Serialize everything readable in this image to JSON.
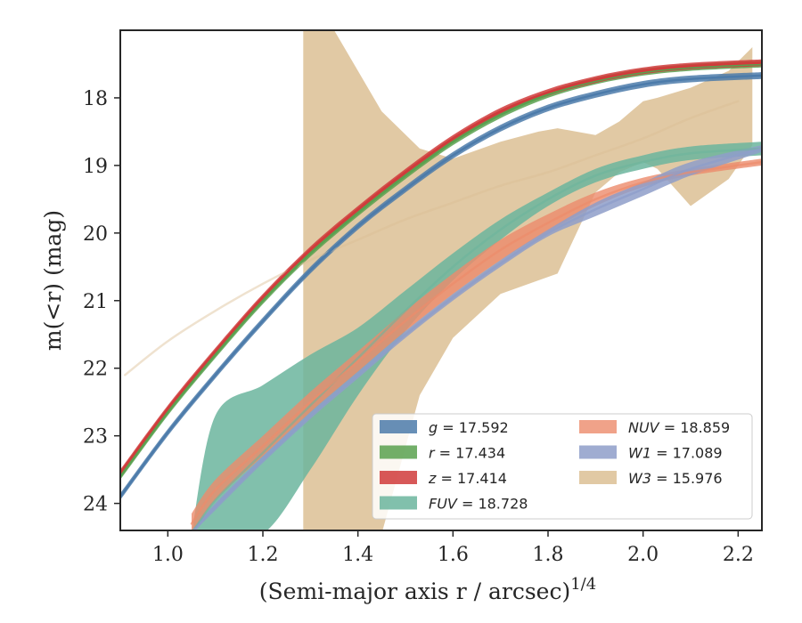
{
  "chart_data": {
    "type": "line",
    "xlabel": "(Semi-major axis r / arcsec)",
    "xlabel_exponent": "1/4",
    "ylabel": "m(<r) (mag)",
    "xlim": [
      0.9,
      2.25
    ],
    "ylim": [
      24.4,
      17.0
    ],
    "y_inverted": true,
    "grid": false,
    "legend_position": "lower-right",
    "x_ticks": [
      "1.0",
      "1.2",
      "1.4",
      "1.6",
      "1.8",
      "2.0",
      "2.2"
    ],
    "x_tick_values": [
      1.0,
      1.2,
      1.4,
      1.6,
      1.8,
      2.0,
      2.2
    ],
    "y_ticks": [
      "18",
      "19",
      "20",
      "21",
      "22",
      "23",
      "24"
    ],
    "y_tick_values": [
      18,
      19,
      20,
      21,
      22,
      23,
      24
    ],
    "legend_columns": [
      [
        "g",
        "r",
        "z",
        "FUV"
      ],
      [
        "NUV",
        "W1",
        "W3"
      ]
    ],
    "series": [
      {
        "id": "g",
        "name": "g",
        "legend_value": "17.592",
        "color": "#4c7baa",
        "x": [
          0.9,
          1.0,
          1.1,
          1.2,
          1.3,
          1.4,
          1.5,
          1.6,
          1.7,
          1.8,
          1.9,
          2.0,
          2.1,
          2.25
        ],
        "y": [
          23.9,
          22.95,
          22.1,
          21.3,
          20.55,
          19.9,
          19.35,
          18.85,
          18.45,
          18.15,
          17.95,
          17.8,
          17.72,
          17.67
        ],
        "band_lo": [
          23.85,
          22.9,
          22.05,
          21.25,
          20.5,
          19.85,
          19.3,
          18.8,
          18.4,
          18.1,
          17.9,
          17.75,
          17.67,
          17.62
        ],
        "band_hi": [
          23.95,
          23.0,
          22.15,
          21.35,
          20.6,
          19.95,
          19.4,
          18.9,
          18.5,
          18.2,
          18.0,
          17.85,
          17.77,
          17.72
        ],
        "line_width": 2.5,
        "line_alpha": 1.0,
        "band_alpha": 0.85
      },
      {
        "id": "r",
        "name": "r",
        "legend_value": "17.434",
        "color": "#59a14f",
        "x": [
          0.9,
          1.0,
          1.1,
          1.2,
          1.3,
          1.4,
          1.5,
          1.6,
          1.7,
          1.8,
          1.9,
          2.0,
          2.1,
          2.25
        ],
        "y": [
          23.6,
          22.65,
          21.8,
          21.0,
          20.3,
          19.7,
          19.15,
          18.65,
          18.25,
          17.95,
          17.75,
          17.62,
          17.55,
          17.5
        ],
        "band_lo": [
          23.55,
          22.6,
          21.75,
          20.95,
          20.25,
          19.65,
          19.1,
          18.6,
          18.2,
          17.9,
          17.7,
          17.57,
          17.5,
          17.45
        ],
        "band_hi": [
          23.65,
          22.7,
          21.85,
          21.05,
          20.35,
          19.75,
          19.2,
          18.7,
          18.3,
          18.0,
          17.8,
          17.67,
          17.6,
          17.55
        ],
        "line_width": 2.5,
        "line_alpha": 1.0,
        "band_alpha": 0.85
      },
      {
        "id": "z",
        "name": "z",
        "legend_value": "17.414",
        "color": "#d03b3b",
        "x": [
          0.9,
          1.0,
          1.1,
          1.2,
          1.3,
          1.4,
          1.5,
          1.6,
          1.7,
          1.8,
          1.9,
          2.0,
          2.1,
          2.25
        ],
        "y": [
          23.55,
          22.6,
          21.75,
          20.95,
          20.25,
          19.65,
          19.1,
          18.6,
          18.2,
          17.92,
          17.73,
          17.6,
          17.53,
          17.48
        ],
        "band_lo": [
          23.5,
          22.55,
          21.7,
          20.9,
          20.2,
          19.6,
          19.05,
          18.55,
          18.15,
          17.87,
          17.68,
          17.55,
          17.48,
          17.43
        ],
        "band_hi": [
          23.6,
          22.65,
          21.8,
          21.0,
          20.3,
          19.7,
          19.15,
          18.65,
          18.25,
          17.97,
          17.78,
          17.65,
          17.58,
          17.53
        ],
        "line_width": 2.5,
        "line_alpha": 1.0,
        "band_alpha": 0.85
      },
      {
        "id": "FUV",
        "name": "FUV",
        "legend_value": "18.728",
        "color": "#6bb59d",
        "x": [
          1.05,
          1.1,
          1.2,
          1.3,
          1.4,
          1.5,
          1.6,
          1.7,
          1.8,
          1.9,
          2.0,
          2.1,
          2.25
        ],
        "y": [
          24.45,
          23.95,
          23.25,
          22.55,
          21.85,
          21.15,
          20.5,
          19.95,
          19.5,
          19.15,
          18.95,
          18.82,
          18.75
        ],
        "band_lo": [
          24.45,
          22.7,
          22.25,
          21.8,
          21.4,
          20.85,
          20.3,
          19.8,
          19.4,
          19.05,
          18.85,
          18.72,
          18.65
        ],
        "band_hi": [
          24.45,
          24.45,
          24.45,
          23.5,
          22.4,
          21.45,
          20.7,
          20.1,
          19.6,
          19.25,
          19.05,
          18.92,
          18.85
        ],
        "line_width": 2.5,
        "line_alpha": 0.55,
        "band_alpha": 0.85
      },
      {
        "id": "NUV",
        "name": "NUV",
        "legend_value": "18.859",
        "color": "#ec8b6b",
        "x": [
          1.05,
          1.1,
          1.2,
          1.3,
          1.4,
          1.5,
          1.6,
          1.7,
          1.8,
          1.9,
          2.0,
          2.1,
          2.25
        ],
        "y": [
          24.3,
          23.8,
          23.15,
          22.5,
          21.9,
          21.3,
          20.75,
          20.25,
          19.85,
          19.5,
          19.25,
          19.1,
          18.95
        ],
        "band_lo": [
          24.15,
          23.65,
          23.0,
          22.35,
          21.75,
          21.15,
          20.6,
          20.1,
          19.72,
          19.4,
          19.18,
          19.05,
          18.9
        ],
        "band_hi": [
          24.45,
          23.95,
          23.3,
          22.65,
          22.05,
          21.45,
          20.9,
          20.4,
          19.98,
          19.6,
          19.32,
          19.15,
          19.0
        ],
        "line_width": 2.5,
        "line_alpha": 0.7,
        "band_alpha": 0.8
      },
      {
        "id": "W1",
        "name": "W1",
        "legend_value": "17.089",
        "color": "#8e9dc9",
        "x": [
          1.05,
          1.1,
          1.2,
          1.3,
          1.4,
          1.5,
          1.6,
          1.7,
          1.8,
          1.9,
          2.0,
          2.1,
          2.25
        ],
        "y": [
          24.45,
          24.05,
          23.35,
          22.7,
          22.1,
          21.5,
          20.95,
          20.45,
          20.0,
          19.65,
          19.35,
          19.05,
          18.75
        ],
        "band_lo": [
          24.4,
          24.0,
          23.3,
          22.65,
          22.05,
          21.45,
          20.9,
          20.4,
          19.95,
          19.55,
          19.25,
          18.95,
          18.7
        ],
        "band_hi": [
          24.45,
          24.1,
          23.4,
          22.75,
          22.15,
          21.55,
          21.0,
          20.5,
          20.05,
          19.75,
          19.45,
          19.15,
          18.8
        ],
        "line_width": 2.5,
        "line_alpha": 0.75,
        "band_alpha": 0.85
      },
      {
        "id": "W3",
        "name": "W3",
        "legend_value": "15.976",
        "color": "#dcbf94",
        "x": [
          0.91,
          1.0,
          1.1,
          1.2,
          1.3,
          1.4,
          1.5,
          1.6,
          1.7,
          1.8,
          1.9,
          2.0,
          2.1,
          2.2
        ],
        "y": [
          22.1,
          21.6,
          21.15,
          20.75,
          20.4,
          20.1,
          19.8,
          19.55,
          19.3,
          19.1,
          18.85,
          18.6,
          18.3,
          18.05
        ],
        "band_x": [
          1.285,
          1.3,
          1.35,
          1.4,
          1.45,
          1.53,
          1.6,
          1.7,
          1.78,
          1.82,
          1.9,
          1.95,
          2.0,
          2.03,
          2.1,
          2.18,
          2.23
        ],
        "band_lo": [
          17.0,
          17.0,
          17.0,
          17.6,
          18.2,
          18.75,
          18.9,
          18.65,
          18.5,
          18.45,
          18.55,
          18.35,
          18.05,
          18.0,
          17.85,
          17.6,
          17.25
        ],
        "band_hi": [
          24.45,
          24.45,
          24.45,
          24.45,
          24.45,
          22.4,
          21.55,
          20.9,
          20.7,
          20.6,
          19.4,
          19.1,
          18.95,
          19.05,
          19.6,
          19.2,
          18.7
        ],
        "line_width": 2.5,
        "line_alpha": 0.45,
        "band_alpha": 0.85
      }
    ],
    "band_draw_order": [
      "W3",
      "FUV",
      "NUV",
      "W1",
      "g",
      "r",
      "z"
    ],
    "line_draw_order": [
      "W3",
      "FUV",
      "NUV",
      "W1",
      "g",
      "r",
      "z"
    ]
  }
}
